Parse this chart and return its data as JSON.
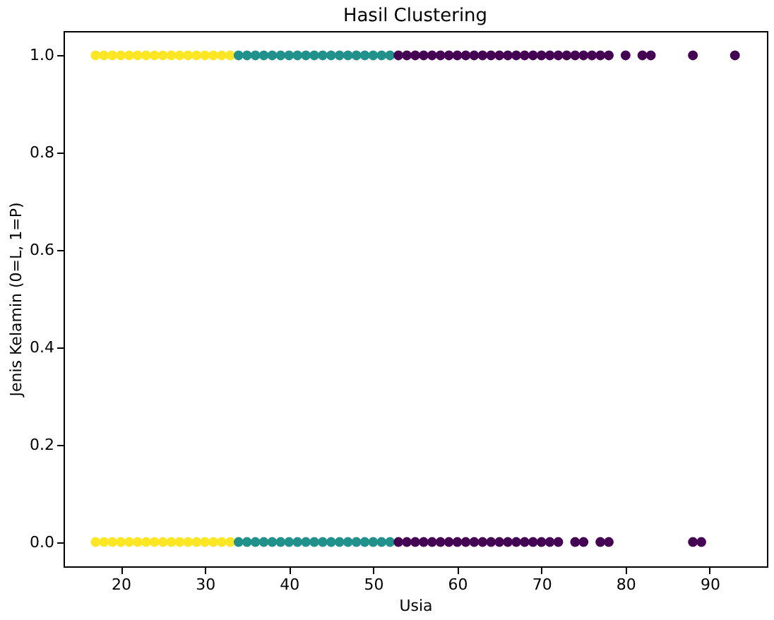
{
  "chart_data": {
    "type": "scatter",
    "title": "Hasil Clustering",
    "xlabel": "Usia",
    "ylabel": "Jenis Kelamin (0=L, 1=P)",
    "xlim": [
      13.2,
      96.8
    ],
    "xticks": [
      20,
      30,
      40,
      50,
      60,
      70,
      80,
      90
    ],
    "ylim": [
      -0.05,
      1.05
    ],
    "yticks": [
      {
        "value": 0,
        "label": "0.0"
      },
      {
        "value": 0.2,
        "label": "0.2"
      },
      {
        "value": 0.4,
        "label": "0.4"
      },
      {
        "value": 0.6,
        "label": "0.6"
      },
      {
        "value": 0.8,
        "label": "0.8"
      },
      {
        "value": 1,
        "label": "1.0"
      }
    ],
    "grid": false,
    "legend": false,
    "marker": "circle",
    "series": [
      {
        "color": "#fde725",
        "x": [
          17,
          18,
          19,
          20,
          21,
          22,
          23,
          24,
          25,
          26,
          27,
          28,
          29,
          30,
          31,
          32,
          33,
          17,
          18,
          19,
          20,
          21,
          22,
          23,
          24,
          25,
          26,
          27,
          28,
          29,
          30,
          31,
          32,
          33
        ],
        "values": [
          1,
          1,
          1,
          1,
          1,
          1,
          1,
          1,
          1,
          1,
          1,
          1,
          1,
          1,
          1,
          1,
          1,
          0,
          0,
          0,
          0,
          0,
          0,
          0,
          0,
          0,
          0,
          0,
          0,
          0,
          0,
          0,
          0,
          0
        ]
      },
      {
        "color": "#21918c",
        "x": [
          34,
          35,
          36,
          37,
          38,
          39,
          40,
          41,
          42,
          43,
          44,
          45,
          46,
          47,
          48,
          49,
          50,
          51,
          52,
          34,
          35,
          36,
          37,
          38,
          39,
          40,
          41,
          42,
          43,
          44,
          45,
          46,
          47,
          48,
          49,
          50,
          51,
          52
        ],
        "values": [
          1,
          1,
          1,
          1,
          1,
          1,
          1,
          1,
          1,
          1,
          1,
          1,
          1,
          1,
          1,
          1,
          1,
          1,
          1,
          0,
          0,
          0,
          0,
          0,
          0,
          0,
          0,
          0,
          0,
          0,
          0,
          0,
          0,
          0,
          0,
          0,
          0,
          0
        ]
      },
      {
        "color": "#440154",
        "x": [
          53,
          54,
          55,
          56,
          57,
          58,
          59,
          60,
          61,
          62,
          63,
          64,
          65,
          66,
          67,
          68,
          69,
          70,
          71,
          72,
          73,
          74,
          75,
          76,
          77,
          78,
          80,
          82,
          83,
          88,
          93,
          53,
          54,
          55,
          56,
          57,
          58,
          59,
          60,
          61,
          62,
          63,
          64,
          65,
          66,
          67,
          68,
          69,
          70,
          71,
          72,
          74,
          75,
          77,
          78,
          88,
          89
        ],
        "values": [
          1,
          1,
          1,
          1,
          1,
          1,
          1,
          1,
          1,
          1,
          1,
          1,
          1,
          1,
          1,
          1,
          1,
          1,
          1,
          1,
          1,
          1,
          1,
          1,
          1,
          1,
          1,
          1,
          1,
          1,
          1,
          0,
          0,
          0,
          0,
          0,
          0,
          0,
          0,
          0,
          0,
          0,
          0,
          0,
          0,
          0,
          0,
          0,
          0,
          0,
          0,
          0,
          0,
          0,
          0,
          0,
          0
        ]
      }
    ]
  }
}
